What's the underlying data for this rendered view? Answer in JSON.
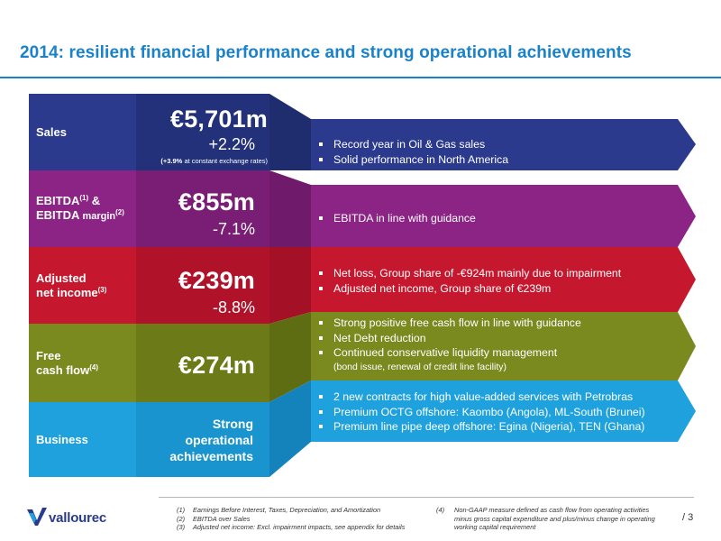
{
  "title": "2014: resilient financial performance and strong operational achievements",
  "rows": [
    {
      "label_lines": [
        "Sales"
      ],
      "value": "€5,701m",
      "change": "+2.2%",
      "note_bold": "(+3.9%",
      "note_rest": " at constant exchange rates)",
      "color": "#2c3a8e",
      "bullets": [
        "Record year in Oil & Gas sales",
        "Solid performance in North America"
      ]
    },
    {
      "label_line1": "EBITDA",
      "label_sup1": "(1)",
      "label_amp": " &",
      "label_line2": "EBITDA",
      "label_margin": " margin",
      "label_sup2": "(2)",
      "value": "€855m",
      "change": "-7.1%",
      "color": "#8b2485",
      "bullets": [
        "EBITDA in line with guidance"
      ]
    },
    {
      "label_line1": "Adjusted",
      "label_line2": "net income",
      "label_sup": "(3)",
      "value": "€239m",
      "change": "-8.8%",
      "color": "#c5182f",
      "bullets": [
        "Net loss, Group share of -€924m mainly due to impairment",
        "Adjusted net income, Group share of €239m"
      ]
    },
    {
      "label_line1": "Free",
      "label_line2": "cash flow",
      "label_sup": "(4)",
      "value": "€274m",
      "color": "#7a8a1f",
      "bullets": [
        "Strong positive free cash flow in line with guidance",
        "Net Debt reduction",
        "Continued conservative liquidity management"
      ],
      "sub_bullet": "(bond issue, renewal of credit line facility)"
    },
    {
      "label_line1": "Business",
      "value_lines": [
        "Strong",
        "operational",
        "achievements"
      ],
      "color": "#1ea1dd",
      "bullets": [
        "2 new contracts for high value-added services with Petrobras",
        "Premium OCTG offshore: Kaombo (Angola), ML-South (Brunei)",
        "Premium line pipe deep offshore: Egina (Nigeria), TEN (Ghana)"
      ]
    }
  ],
  "footnotes_left": [
    {
      "key": "(1)",
      "text": "Earnings Before Interest, Taxes, Depreciation, and Amortization"
    },
    {
      "key": "(2)",
      "text": "EBITDA over Sales"
    },
    {
      "key": "(3)",
      "text": "Adjusted net income: Excl. impairment impacts, see appendix for details"
    }
  ],
  "footnote_right": {
    "key": "(4)",
    "lines": [
      "Non-GAAP measure defined as cash flow from operating activities",
      "minus gross capital expenditure and plus/minus change in operating",
      "working capital requirement"
    ]
  },
  "brand": "vallourec",
  "page_number": "/ 3",
  "colors": {
    "title": "#1a82c9",
    "navy": "#2c3a8e",
    "purple": "#8b2485",
    "red": "#c5182f",
    "olive": "#7a8a1f",
    "sky": "#1ea1dd"
  }
}
